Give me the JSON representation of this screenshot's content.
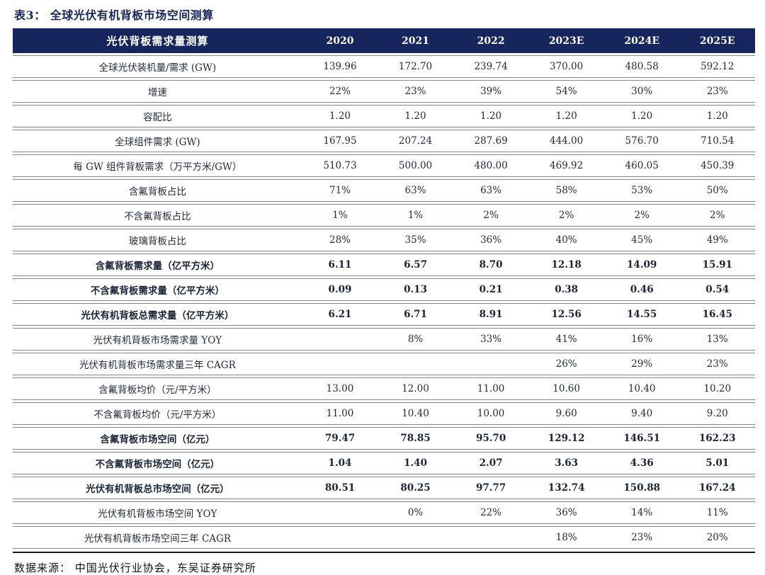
{
  "title": "表3： 全球光伏有机背板市场空间测算",
  "colors": {
    "header_bg": "#16265c",
    "header_text": "#ffffff",
    "title_text": "#16265c",
    "body_text": "#232a3c",
    "row_line": "#858585",
    "bottom_rule": "#1a1a1a"
  },
  "table": {
    "header": [
      "光伏背板需求量测算",
      "2020",
      "2021",
      "2022",
      "2023E",
      "2024E",
      "2025E"
    ],
    "rows": [
      {
        "label": "全球光伏装机量/需求 (GW)",
        "bold": false,
        "values": [
          "139.96",
          "172.70",
          "239.74",
          "370.00",
          "480.58",
          "592.12"
        ]
      },
      {
        "label": "增速",
        "bold": false,
        "values": [
          "22%",
          "23%",
          "39%",
          "54%",
          "30%",
          "23%"
        ]
      },
      {
        "label": "容配比",
        "bold": false,
        "values": [
          "1.20",
          "1.20",
          "1.20",
          "1.20",
          "1.20",
          "1.20"
        ]
      },
      {
        "label": "全球组件需求 (GW)",
        "bold": false,
        "values": [
          "167.95",
          "207.24",
          "287.69",
          "444.00",
          "576.70",
          "710.54"
        ]
      },
      {
        "label": "每 GW 组件背板需求（万平方米/GW）",
        "bold": false,
        "values": [
          "510.73",
          "500.00",
          "480.00",
          "469.92",
          "460.05",
          "450.39"
        ]
      },
      {
        "label": "含氟背板占比",
        "bold": false,
        "values": [
          "71%",
          "63%",
          "63%",
          "58%",
          "53%",
          "50%"
        ]
      },
      {
        "label": "不含氟背板占比",
        "bold": false,
        "values": [
          "1%",
          "1%",
          "2%",
          "2%",
          "2%",
          "2%"
        ]
      },
      {
        "label": "玻璃背板占比",
        "bold": false,
        "values": [
          "28%",
          "35%",
          "36%",
          "40%",
          "45%",
          "49%"
        ]
      },
      {
        "label": "含氟背板需求量（亿平方米）",
        "bold": true,
        "values": [
          "6.11",
          "6.57",
          "8.70",
          "12.18",
          "14.09",
          "15.91"
        ]
      },
      {
        "label": "不含氟背板需求量（亿平方米）",
        "bold": true,
        "values": [
          "0.09",
          "0.13",
          "0.21",
          "0.38",
          "0.46",
          "0.54"
        ]
      },
      {
        "label": "光伏有机背板总需求量（亿平方米）",
        "bold": true,
        "values": [
          "6.21",
          "6.71",
          "8.91",
          "12.56",
          "14.55",
          "16.45"
        ]
      },
      {
        "label": "光伏有机背板市场需求量 YOY",
        "bold": false,
        "values": [
          "",
          "8%",
          "33%",
          "41%",
          "16%",
          "13%"
        ]
      },
      {
        "label": "光伏有机背板市场需求量三年 CAGR",
        "bold": false,
        "values": [
          "",
          "",
          "",
          "26%",
          "29%",
          "23%"
        ]
      },
      {
        "label": "含氟背板均价（元/平方米）",
        "bold": false,
        "values": [
          "13.00",
          "12.00",
          "11.00",
          "10.60",
          "10.40",
          "10.20"
        ]
      },
      {
        "label": "不含氟背板均价（元/平方米）",
        "bold": false,
        "values": [
          "11.00",
          "10.40",
          "10.00",
          "9.60",
          "9.40",
          "9.20"
        ]
      },
      {
        "label": "含氟背板市场空间（亿元）",
        "bold": true,
        "values": [
          "79.47",
          "78.85",
          "95.70",
          "129.12",
          "146.51",
          "162.23"
        ]
      },
      {
        "label": "不含氟背板市场空间（亿元）",
        "bold": true,
        "values": [
          "1.04",
          "1.40",
          "2.07",
          "3.63",
          "4.36",
          "5.01"
        ]
      },
      {
        "label": "光伏有机背板总市场空间（亿元）",
        "bold": true,
        "values": [
          "80.51",
          "80.25",
          "97.77",
          "132.74",
          "150.88",
          "167.24"
        ]
      },
      {
        "label": "光伏有机背板市场空间 YOY",
        "bold": false,
        "values": [
          "",
          "0%",
          "22%",
          "36%",
          "14%",
          "11%"
        ]
      },
      {
        "label": "光伏有机背板市场空间三年 CAGR",
        "bold": false,
        "values": [
          "",
          "",
          "",
          "18%",
          "23%",
          "20%"
        ]
      }
    ]
  },
  "footer": "数据来源： 中国光伏行业协会，东吴证券研究所"
}
